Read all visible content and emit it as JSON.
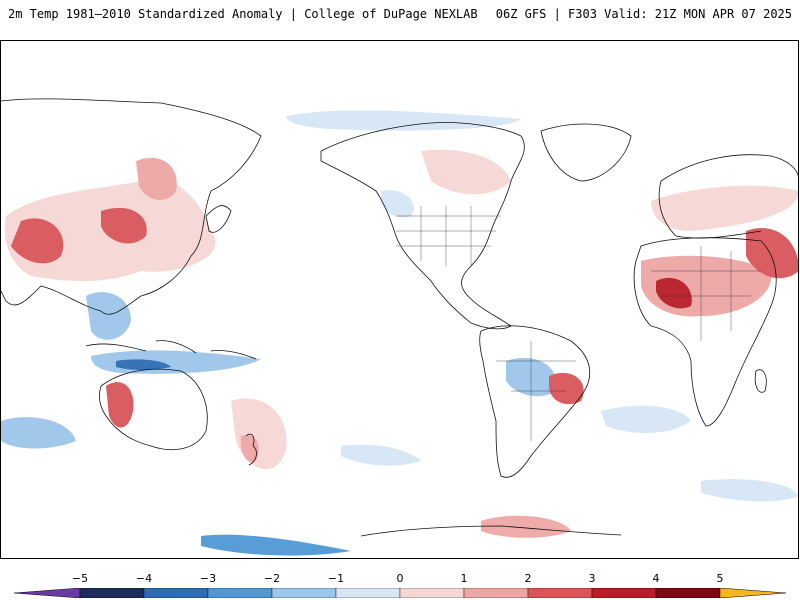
{
  "header": {
    "title": "2m Temp 1981–2010 Standardized Anomaly | College of DuPage NEXLAB",
    "run_info": "06Z GFS | F303 Valid: 21Z MON APR 07 2025"
  },
  "map": {
    "projection": "global equirectangular, Pacific-centered",
    "variable": "2m temperature standardized anomaly"
  },
  "colorbar": {
    "ticks": [
      "−5",
      "−4",
      "−3",
      "−2",
      "−1",
      "0",
      "1",
      "2",
      "3",
      "4",
      "5"
    ],
    "colors": [
      "#1e2c5c",
      "#2d6cb3",
      "#4f98d6",
      "#9cc6ea",
      "#d6e6f5",
      "#ffffff",
      "#f6d7d5",
      "#eea6a4",
      "#d95559",
      "#b81c27",
      "#7a0a12"
    ],
    "low_extend_color": "#6b3aa3",
    "high_extend_color": "#f2b81e"
  }
}
